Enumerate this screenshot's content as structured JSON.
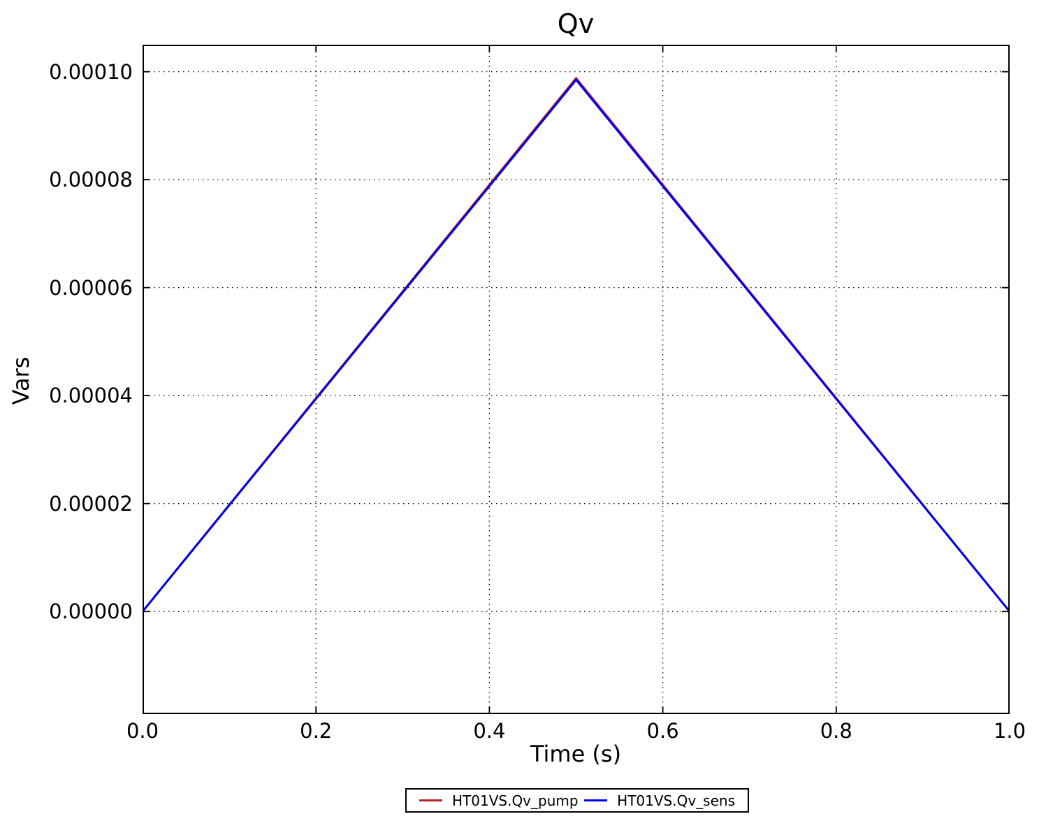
{
  "chart_data": {
    "type": "line",
    "title": "Qv",
    "xlabel": "Time (s)",
    "ylabel": "Vars",
    "xlim": [
      0.0,
      1.0
    ],
    "ylim": [
      -1.9e-05,
      0.000105
    ],
    "grid": true,
    "grid_style": "dotted",
    "legend_position": "bottom-center-outside",
    "xticks": {
      "values": [
        0.0,
        0.2,
        0.4,
        0.6,
        0.8,
        1.0
      ],
      "labels": [
        "0.0",
        "0.2",
        "0.4",
        "0.6",
        "0.8",
        "1.0"
      ]
    },
    "yticks": {
      "values": [
        0.0,
        2e-05,
        4e-05,
        6e-05,
        8e-05,
        0.0001
      ],
      "labels": [
        "0.00000",
        "0.00002",
        "0.00004",
        "0.00006",
        "0.00008",
        "0.00010"
      ]
    },
    "series": [
      {
        "name": "HT01VS.Qv_pump",
        "color": "#b22222",
        "x": [
          0.0,
          0.5,
          1.0
        ],
        "y": [
          0.0,
          9.88e-05,
          0.0
        ]
      },
      {
        "name": "HT01VS.Qv_sens",
        "color": "#0000ee",
        "x": [
          0.0,
          0.5,
          1.0
        ],
        "y": [
          0.0,
          9.85e-05,
          0.0
        ]
      }
    ]
  },
  "colors": {
    "axis": "#000000",
    "grid": "#000000",
    "background": "#ffffff",
    "text": "#000000"
  }
}
